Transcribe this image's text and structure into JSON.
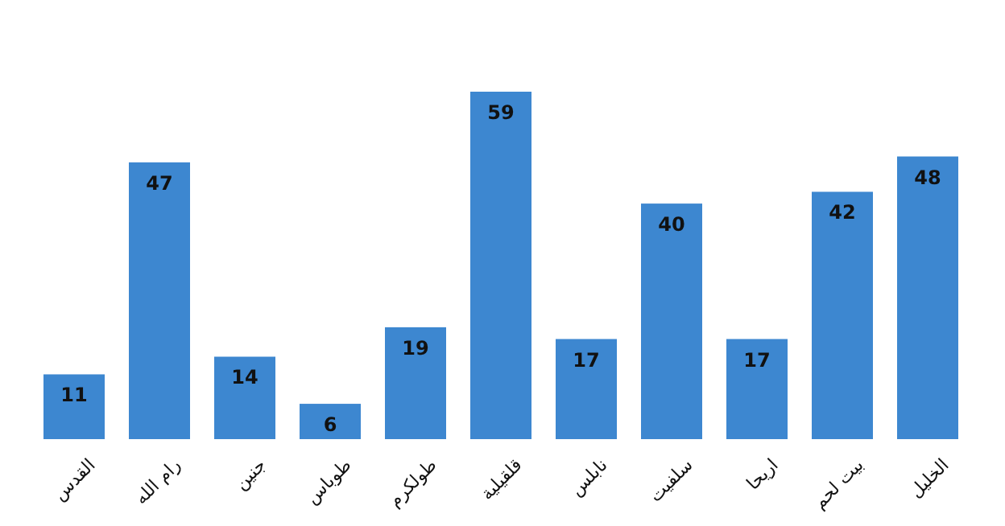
{
  "chart_data": {
    "type": "bar",
    "categories": [
      "القدس",
      "رام الله",
      "جنين",
      "طوباس",
      "طولكرم",
      "قلقيلية",
      "نابلس",
      "سلفيت",
      "اريحا",
      "بيت لحم",
      "الخليل"
    ],
    "values": [
      11,
      47,
      14,
      6,
      19,
      59,
      17,
      40,
      17,
      42,
      48
    ],
    "color": "#3d87d0",
    "data_labels": true
  }
}
